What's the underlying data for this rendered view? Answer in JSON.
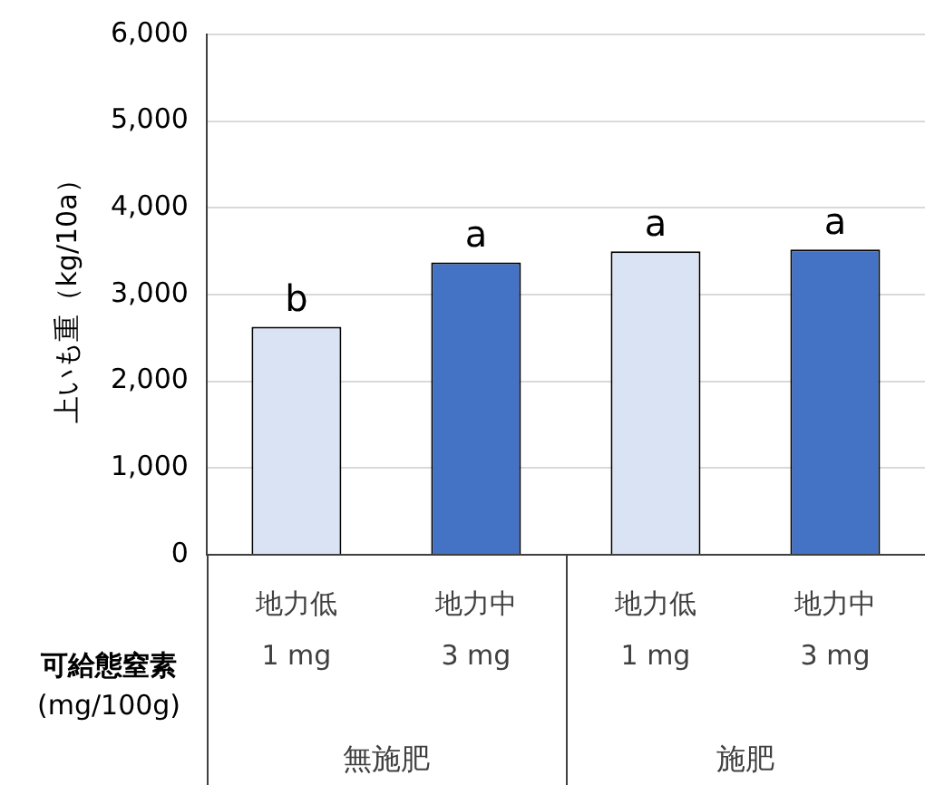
{
  "chart_data": {
    "type": "bar",
    "ylabel": "上いも重（kg/10a）",
    "categories": [
      "地力低\n1 mg",
      "地力中\n3 mg",
      "地力低\n1 mg",
      "地力中\n3 mg"
    ],
    "values": [
      2630,
      3370,
      3500,
      3520
    ],
    "colors": [
      "#dae3f3",
      "#4472c4",
      "#dae3f3",
      "#4472c4"
    ],
    "value_labels": [
      "b",
      "a",
      "a",
      "a"
    ],
    "ylim": [
      0,
      6000
    ],
    "yticks": [
      {
        "value": 0,
        "label": "0"
      },
      {
        "value": 1000,
        "label": "1,000"
      },
      {
        "value": 2000,
        "label": "2,000"
      },
      {
        "value": 3000,
        "label": "3,000"
      },
      {
        "value": 4000,
        "label": "4,000"
      },
      {
        "value": 5000,
        "label": "5,000"
      },
      {
        "value": 6000,
        "label": "6,000"
      }
    ],
    "grid": "y",
    "legend": false,
    "annotations": [
      "可給態窒素\n(mg/100g)",
      "無施肥",
      "施肥"
    ]
  }
}
